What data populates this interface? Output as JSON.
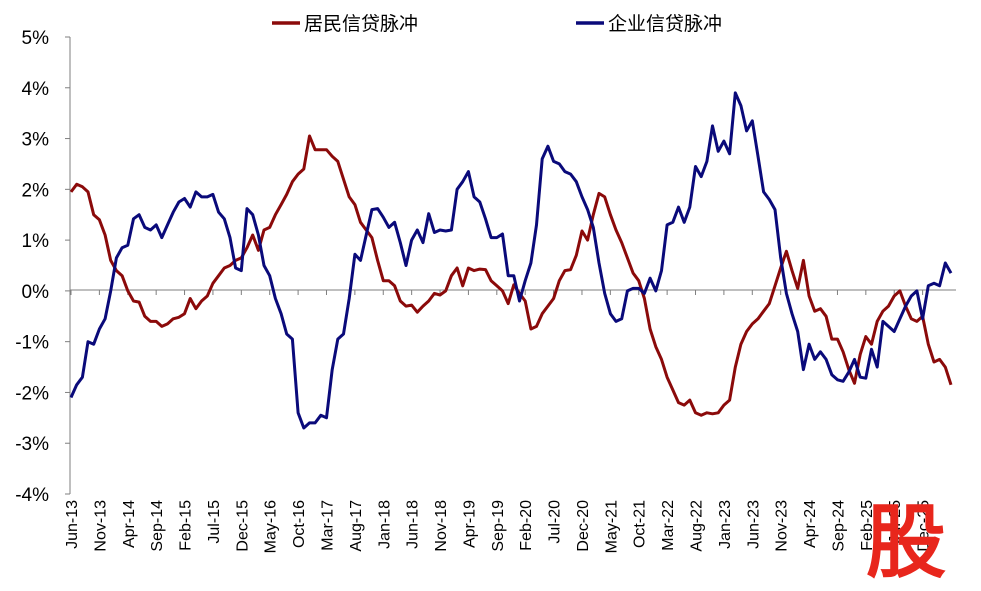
{
  "chart_data": {
    "type": "line",
    "title": "",
    "xlabel": "",
    "ylabel": "",
    "ylim": [
      -4,
      5
    ],
    "y_ticks": [
      "5%",
      "4%",
      "3%",
      "2%",
      "1%",
      "0%",
      "-1%",
      "-2%",
      "-3%",
      "-4%"
    ],
    "x_ticks": [
      "Jun-13",
      "Nov-13",
      "Apr-14",
      "Sep-14",
      "Feb-15",
      "Jul-15",
      "Dec-15",
      "May-16",
      "Oct-16",
      "Mar-17",
      "Aug-17",
      "Jan-18",
      "Jun-18",
      "Nov-18",
      "Apr-19",
      "Sep-19",
      "Feb-20",
      "Jul-20",
      "Dec-20",
      "May-21",
      "Oct-21",
      "Mar-22",
      "Aug-22",
      "Jan-23",
      "Jun-23",
      "Nov-23",
      "Apr-24",
      "Sep-24",
      "Feb-25",
      "Jul-25",
      "Dec-25"
    ],
    "x_tick_months": [
      0,
      5,
      10,
      15,
      20,
      25,
      30,
      35,
      40,
      45,
      50,
      55,
      60,
      65,
      70,
      75,
      80,
      85,
      90,
      95,
      100,
      105,
      110,
      115,
      120,
      125,
      130,
      135,
      140,
      145,
      150
    ],
    "grid": false,
    "legend_position": "top",
    "series": [
      {
        "name": "居民信贷脉冲",
        "color": "#8b0a0a",
        "points": [
          [
            0,
            1.95
          ],
          [
            1,
            2.1
          ],
          [
            2,
            2.05
          ],
          [
            3,
            1.95
          ],
          [
            4,
            1.5
          ],
          [
            5,
            1.4
          ],
          [
            6,
            1.1
          ],
          [
            7,
            0.6
          ],
          [
            8,
            0.4
          ],
          [
            9,
            0.3
          ],
          [
            10,
            0.0
          ],
          [
            11,
            -0.2
          ],
          [
            12,
            -0.22
          ],
          [
            13,
            -0.5
          ],
          [
            14,
            -0.6
          ],
          [
            15,
            -0.6
          ],
          [
            16,
            -0.7
          ],
          [
            17,
            -0.65
          ],
          [
            18,
            -0.55
          ],
          [
            19,
            -0.52
          ],
          [
            20,
            -0.45
          ],
          [
            21,
            -0.15
          ],
          [
            22,
            -0.35
          ],
          [
            23,
            -0.2
          ],
          [
            24,
            -0.1
          ],
          [
            25,
            0.15
          ],
          [
            26,
            0.3
          ],
          [
            27,
            0.45
          ],
          [
            28,
            0.5
          ],
          [
            29,
            0.6
          ],
          [
            30,
            0.65
          ],
          [
            31,
            0.85
          ],
          [
            32,
            1.1
          ],
          [
            33,
            0.8
          ],
          [
            34,
            1.2
          ],
          [
            35,
            1.25
          ],
          [
            36,
            1.5
          ],
          [
            37,
            1.7
          ],
          [
            38,
            1.9
          ],
          [
            39,
            2.15
          ],
          [
            40,
            2.3
          ],
          [
            41,
            2.4
          ],
          [
            42,
            3.05
          ],
          [
            43,
            2.78
          ],
          [
            44,
            2.78
          ],
          [
            45,
            2.78
          ],
          [
            46,
            2.65
          ],
          [
            47,
            2.55
          ],
          [
            48,
            2.2
          ],
          [
            49,
            1.85
          ],
          [
            50,
            1.7
          ],
          [
            51,
            1.35
          ],
          [
            52,
            1.2
          ],
          [
            53,
            1.05
          ],
          [
            54,
            0.6
          ],
          [
            55,
            0.2
          ],
          [
            56,
            0.2
          ],
          [
            57,
            0.1
          ],
          [
            58,
            -0.2
          ],
          [
            59,
            -0.3
          ],
          [
            60,
            -0.28
          ],
          [
            61,
            -0.42
          ],
          [
            62,
            -0.3
          ],
          [
            63,
            -0.2
          ],
          [
            64,
            -0.05
          ],
          [
            65,
            -0.08
          ],
          [
            66,
            0.0
          ],
          [
            67,
            0.3
          ],
          [
            68,
            0.45
          ],
          [
            69,
            0.1
          ],
          [
            70,
            0.45
          ],
          [
            71,
            0.4
          ],
          [
            72,
            0.43
          ],
          [
            73,
            0.42
          ],
          [
            74,
            0.2
          ],
          [
            75,
            0.1
          ],
          [
            76,
            0.0
          ],
          [
            77,
            -0.25
          ],
          [
            78,
            0.12
          ],
          [
            79,
            -0.05
          ],
          [
            80,
            -0.2
          ],
          [
            81,
            -0.75
          ],
          [
            82,
            -0.7
          ],
          [
            83,
            -0.45
          ],
          [
            84,
            -0.3
          ],
          [
            85,
            -0.15
          ],
          [
            86,
            0.2
          ],
          [
            87,
            0.4
          ],
          [
            88,
            0.42
          ],
          [
            89,
            0.7
          ],
          [
            90,
            1.18
          ],
          [
            91,
            1.0
          ],
          [
            92,
            1.5
          ],
          [
            93,
            1.92
          ],
          [
            94,
            1.85
          ],
          [
            95,
            1.5
          ],
          [
            96,
            1.2
          ],
          [
            97,
            0.95
          ],
          [
            98,
            0.65
          ],
          [
            99,
            0.35
          ],
          [
            100,
            0.2
          ],
          [
            101,
            -0.15
          ],
          [
            102,
            -0.75
          ],
          [
            103,
            -1.1
          ],
          [
            104,
            -1.35
          ],
          [
            105,
            -1.7
          ],
          [
            106,
            -1.95
          ],
          [
            107,
            -2.2
          ],
          [
            108,
            -2.25
          ],
          [
            109,
            -2.15
          ],
          [
            110,
            -2.4
          ],
          [
            111,
            -2.45
          ],
          [
            112,
            -2.4
          ],
          [
            113,
            -2.42
          ],
          [
            114,
            -2.4
          ],
          [
            115,
            -2.25
          ],
          [
            116,
            -2.15
          ],
          [
            117,
            -1.5
          ],
          [
            118,
            -1.05
          ],
          [
            119,
            -0.8
          ],
          [
            120,
            -0.65
          ],
          [
            121,
            -0.55
          ],
          [
            122,
            -0.4
          ],
          [
            123,
            -0.25
          ],
          [
            124,
            0.1
          ],
          [
            125,
            0.45
          ],
          [
            126,
            0.78
          ],
          [
            127,
            0.4
          ],
          [
            128,
            0.05
          ],
          [
            129,
            0.6
          ],
          [
            130,
            -0.1
          ],
          [
            131,
            -0.4
          ],
          [
            132,
            -0.35
          ],
          [
            133,
            -0.5
          ],
          [
            134,
            -0.95
          ],
          [
            135,
            -0.95
          ],
          [
            136,
            -1.2
          ],
          [
            137,
            -1.55
          ],
          [
            138,
            -1.82
          ],
          [
            139,
            -1.25
          ],
          [
            140,
            -0.9
          ],
          [
            141,
            -1.05
          ],
          [
            142,
            -0.6
          ],
          [
            143,
            -0.4
          ],
          [
            144,
            -0.3
          ],
          [
            145,
            -0.1
          ],
          [
            146,
            0.0
          ],
          [
            147,
            -0.3
          ],
          [
            148,
            -0.55
          ],
          [
            149,
            -0.6
          ],
          [
            150,
            -0.5
          ],
          [
            151,
            -1.05
          ],
          [
            152,
            -1.4
          ],
          [
            153,
            -1.35
          ],
          [
            154,
            -1.5
          ],
          [
            155,
            -1.85
          ]
        ]
      },
      {
        "name": "企业信贷脉冲",
        "color": "#0a0a7a",
        "points": [
          [
            0,
            -2.1
          ],
          [
            1,
            -1.85
          ],
          [
            2,
            -1.7
          ],
          [
            3,
            -1.0
          ],
          [
            4,
            -1.05
          ],
          [
            5,
            -0.75
          ],
          [
            6,
            -0.55
          ],
          [
            7,
            0.0
          ],
          [
            8,
            0.65
          ],
          [
            9,
            0.85
          ],
          [
            10,
            0.9
          ],
          [
            11,
            1.42
          ],
          [
            12,
            1.5
          ],
          [
            13,
            1.25
          ],
          [
            14,
            1.2
          ],
          [
            15,
            1.3
          ],
          [
            16,
            1.05
          ],
          [
            17,
            1.3
          ],
          [
            18,
            1.55
          ],
          [
            19,
            1.75
          ],
          [
            20,
            1.82
          ],
          [
            21,
            1.65
          ],
          [
            22,
            1.95
          ],
          [
            23,
            1.85
          ],
          [
            24,
            1.85
          ],
          [
            25,
            1.9
          ],
          [
            26,
            1.55
          ],
          [
            27,
            1.42
          ],
          [
            28,
            1.05
          ],
          [
            29,
            0.45
          ],
          [
            30,
            0.4
          ],
          [
            31,
            1.62
          ],
          [
            32,
            1.5
          ],
          [
            33,
            1.1
          ],
          [
            34,
            0.5
          ],
          [
            35,
            0.3
          ],
          [
            36,
            -0.15
          ],
          [
            37,
            -0.45
          ],
          [
            38,
            -0.85
          ],
          [
            39,
            -0.95
          ],
          [
            40,
            -2.4
          ],
          [
            41,
            -2.7
          ],
          [
            42,
            -2.6
          ],
          [
            43,
            -2.6
          ],
          [
            44,
            -2.45
          ],
          [
            45,
            -2.5
          ],
          [
            46,
            -1.55
          ],
          [
            47,
            -0.95
          ],
          [
            48,
            -0.85
          ],
          [
            49,
            -0.15
          ],
          [
            50,
            0.72
          ],
          [
            51,
            0.6
          ],
          [
            52,
            1.1
          ],
          [
            53,
            1.6
          ],
          [
            54,
            1.62
          ],
          [
            55,
            1.45
          ],
          [
            56,
            1.25
          ],
          [
            57,
            1.35
          ],
          [
            58,
            0.95
          ],
          [
            59,
            0.5
          ],
          [
            60,
            1.0
          ],
          [
            61,
            1.2
          ],
          [
            62,
            0.95
          ],
          [
            63,
            1.52
          ],
          [
            64,
            1.15
          ],
          [
            65,
            1.2
          ],
          [
            66,
            1.18
          ],
          [
            67,
            1.2
          ],
          [
            68,
            2.0
          ],
          [
            69,
            2.15
          ],
          [
            70,
            2.35
          ],
          [
            71,
            1.85
          ],
          [
            72,
            1.75
          ],
          [
            73,
            1.42
          ],
          [
            74,
            1.05
          ],
          [
            75,
            1.05
          ],
          [
            76,
            1.12
          ],
          [
            77,
            0.3
          ],
          [
            78,
            0.3
          ],
          [
            79,
            -0.2
          ],
          [
            80,
            0.2
          ],
          [
            81,
            0.55
          ],
          [
            82,
            1.3
          ],
          [
            83,
            2.6
          ],
          [
            84,
            2.85
          ],
          [
            85,
            2.55
          ],
          [
            86,
            2.5
          ],
          [
            87,
            2.35
          ],
          [
            88,
            2.3
          ],
          [
            89,
            2.15
          ],
          [
            90,
            1.85
          ],
          [
            91,
            1.6
          ],
          [
            92,
            1.25
          ],
          [
            93,
            0.55
          ],
          [
            94,
            -0.05
          ],
          [
            95,
            -0.45
          ],
          [
            96,
            -0.6
          ],
          [
            97,
            -0.55
          ],
          [
            98,
            0.0
          ],
          [
            99,
            0.05
          ],
          [
            100,
            0.05
          ],
          [
            101,
            -0.05
          ],
          [
            102,
            0.25
          ],
          [
            103,
            0.0
          ],
          [
            104,
            0.4
          ],
          [
            105,
            1.3
          ],
          [
            106,
            1.35
          ],
          [
            107,
            1.65
          ],
          [
            108,
            1.35
          ],
          [
            109,
            1.65
          ],
          [
            110,
            2.45
          ],
          [
            111,
            2.25
          ],
          [
            112,
            2.55
          ],
          [
            113,
            3.25
          ],
          [
            114,
            2.75
          ],
          [
            115,
            2.95
          ],
          [
            116,
            2.7
          ],
          [
            117,
            3.9
          ],
          [
            118,
            3.65
          ],
          [
            119,
            3.15
          ],
          [
            120,
            3.35
          ],
          [
            121,
            2.65
          ],
          [
            122,
            1.95
          ],
          [
            123,
            1.8
          ],
          [
            124,
            1.6
          ],
          [
            125,
            0.65
          ],
          [
            126,
            -0.05
          ],
          [
            127,
            -0.45
          ],
          [
            128,
            -0.8
          ],
          [
            129,
            -1.55
          ],
          [
            130,
            -1.05
          ],
          [
            131,
            -1.35
          ],
          [
            132,
            -1.2
          ],
          [
            133,
            -1.35
          ],
          [
            134,
            -1.65
          ],
          [
            135,
            -1.75
          ],
          [
            136,
            -1.78
          ],
          [
            137,
            -1.6
          ],
          [
            138,
            -1.35
          ],
          [
            139,
            -1.7
          ],
          [
            140,
            -1.72
          ],
          [
            141,
            -1.15
          ],
          [
            142,
            -1.5
          ],
          [
            143,
            -0.6
          ],
          [
            144,
            -0.7
          ],
          [
            145,
            -0.8
          ],
          [
            146,
            -0.55
          ],
          [
            147,
            -0.3
          ],
          [
            148,
            -0.1
          ],
          [
            149,
            0.0
          ],
          [
            150,
            -0.55
          ],
          [
            151,
            0.1
          ],
          [
            152,
            0.15
          ],
          [
            153,
            0.1
          ],
          [
            154,
            0.55
          ],
          [
            155,
            0.35
          ]
        ]
      }
    ]
  },
  "watermark": {
    "glyph": "股",
    "color": "#e8261c"
  }
}
